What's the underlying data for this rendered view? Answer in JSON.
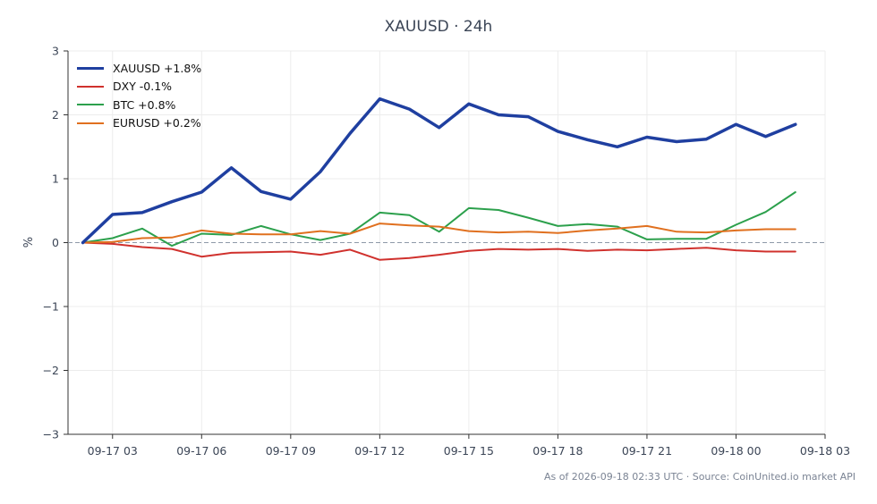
{
  "chart_data": {
    "type": "line",
    "title": "XAUUSD · 24h",
    "ylabel": "%",
    "xlabel": "",
    "ylim": [
      -3,
      3
    ],
    "yticks": [
      3,
      2,
      1,
      0,
      -1,
      -2,
      -3
    ],
    "ytick_labels": [
      "3",
      "2",
      "1",
      "0",
      "−1",
      "−2",
      "−3"
    ],
    "xlim": [
      "09-17 01:30",
      "09-18 03:00"
    ],
    "xticks": [
      "09-17 03:00",
      "09-17 06:00",
      "09-17 09:00",
      "09-17 12:00",
      "09-17 15:00",
      "09-17 18:00",
      "09-17 21:00",
      "09-18 00:00",
      "09-18 03:00"
    ],
    "xtick_labels": [
      "09-17 03",
      "09-17 06",
      "09-17 09",
      "09-17 12",
      "09-17 15",
      "09-17 18",
      "09-17 21",
      "09-18 00",
      "09-18 03"
    ],
    "x": [
      "09-17 02:00",
      "09-17 03:00",
      "09-17 04:00",
      "09-17 05:00",
      "09-17 06:00",
      "09-17 07:00",
      "09-17 08:00",
      "09-17 09:00",
      "09-17 10:00",
      "09-17 11:00",
      "09-17 12:00",
      "09-17 13:00",
      "09-17 14:00",
      "09-17 15:00",
      "09-17 16:00",
      "09-17 17:00",
      "09-17 18:00",
      "09-17 19:00",
      "09-17 20:00",
      "09-17 21:00",
      "09-17 22:00",
      "09-17 23:00",
      "09-18 00:00",
      "09-18 01:00",
      "09-18 02:00"
    ],
    "series": [
      {
        "name": "XAUUSD +1.8%",
        "color": "#1f3fa0",
        "width": 3.5,
        "values": [
          0.0,
          0.44,
          0.47,
          0.64,
          0.79,
          1.17,
          0.8,
          0.68,
          1.11,
          1.71,
          2.25,
          2.09,
          1.8,
          2.17,
          2.0,
          1.97,
          1.74,
          1.61,
          1.5,
          1.65,
          1.58,
          1.62,
          1.85,
          1.66,
          1.85
        ]
      },
      {
        "name": "DXY -0.1%",
        "color": "#d0312d",
        "width": 2,
        "values": [
          0.0,
          -0.02,
          -0.07,
          -0.1,
          -0.22,
          -0.16,
          -0.15,
          -0.14,
          -0.19,
          -0.11,
          -0.27,
          -0.24,
          -0.19,
          -0.13,
          -0.1,
          -0.11,
          -0.1,
          -0.13,
          -0.11,
          -0.12,
          -0.1,
          -0.08,
          -0.12,
          -0.14,
          -0.14
        ]
      },
      {
        "name": "BTC +0.8%",
        "color": "#2ca04c",
        "width": 2,
        "values": [
          0.0,
          0.07,
          0.22,
          -0.05,
          0.14,
          0.12,
          0.26,
          0.13,
          0.04,
          0.14,
          0.47,
          0.43,
          0.17,
          0.54,
          0.51,
          0.39,
          0.26,
          0.29,
          0.25,
          0.05,
          0.06,
          0.06,
          0.28,
          0.48,
          0.79
        ]
      },
      {
        "name": "EURUSD +0.2%",
        "color": "#e0701f",
        "width": 2,
        "values": [
          0.0,
          0.01,
          0.07,
          0.08,
          0.19,
          0.14,
          0.13,
          0.13,
          0.18,
          0.14,
          0.3,
          0.27,
          0.25,
          0.18,
          0.16,
          0.17,
          0.15,
          0.19,
          0.22,
          0.26,
          0.17,
          0.16,
          0.19,
          0.21,
          0.21
        ]
      }
    ],
    "zero_line": true,
    "grid": true,
    "legend_position": "top-left"
  },
  "footer": "As of 2026-09-18 02:33 UTC · Source: CoinUnited.io market API"
}
